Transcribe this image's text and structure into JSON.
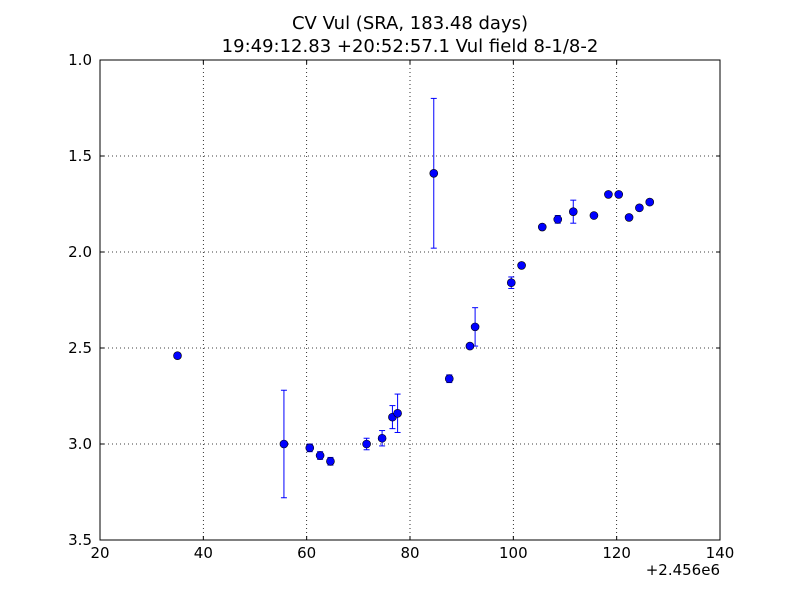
{
  "chart_data": {
    "type": "scatter",
    "title": "CV Vul (SRA, 183.48 days)",
    "subtitle": "19:49:12.83 +20:52:57.1 Vul field 8-1/8-2",
    "xlabel": "",
    "ylabel": "",
    "x_offset_label": "+2.456e6",
    "xlim": [
      20,
      140
    ],
    "ylim": [
      3.5,
      1.0
    ],
    "y_inverted": true,
    "x_ticks": [
      20,
      40,
      60,
      80,
      100,
      120,
      140
    ],
    "x_tick_labels": [
      "20",
      "40",
      "60",
      "80",
      "100",
      "120",
      "140"
    ],
    "y_ticks": [
      1.0,
      1.5,
      2.0,
      2.5,
      3.0,
      3.5
    ],
    "y_tick_labels": [
      "1.0",
      "1.5",
      "2.0",
      "2.5",
      "3.0",
      "3.5"
    ],
    "grid": true,
    "marker_color": "#0000ff",
    "points": [
      {
        "x": 35.0,
        "y": 2.54,
        "err": 0
      },
      {
        "x": 55.6,
        "y": 3.0,
        "err": 0.28
      },
      {
        "x": 60.6,
        "y": 3.02,
        "err": 0.02
      },
      {
        "x": 62.6,
        "y": 3.06,
        "err": 0.02
      },
      {
        "x": 64.6,
        "y": 3.09,
        "err": 0.02
      },
      {
        "x": 71.6,
        "y": 3.0,
        "err": 0.03
      },
      {
        "x": 74.6,
        "y": 2.97,
        "err": 0.04
      },
      {
        "x": 76.6,
        "y": 2.86,
        "err": 0.06
      },
      {
        "x": 77.6,
        "y": 2.84,
        "err": 0.1
      },
      {
        "x": 84.6,
        "y": 1.59,
        "err": 0.39
      },
      {
        "x": 87.6,
        "y": 2.66,
        "err": 0.02
      },
      {
        "x": 91.6,
        "y": 2.49,
        "err": 0.01
      },
      {
        "x": 92.6,
        "y": 2.39,
        "err": 0.1
      },
      {
        "x": 99.6,
        "y": 2.16,
        "err": 0.03
      },
      {
        "x": 101.6,
        "y": 2.07,
        "err": 0
      },
      {
        "x": 105.6,
        "y": 1.87,
        "err": 0.01
      },
      {
        "x": 108.6,
        "y": 1.83,
        "err": 0.02
      },
      {
        "x": 111.6,
        "y": 1.79,
        "err": 0.06
      },
      {
        "x": 115.6,
        "y": 1.81,
        "err": 0
      },
      {
        "x": 118.4,
        "y": 1.7,
        "err": 0.01
      },
      {
        "x": 120.4,
        "y": 1.7,
        "err": 0.01
      },
      {
        "x": 122.4,
        "y": 1.82,
        "err": 0
      },
      {
        "x": 124.4,
        "y": 1.77,
        "err": 0
      },
      {
        "x": 126.4,
        "y": 1.74,
        "err": 0
      }
    ]
  }
}
